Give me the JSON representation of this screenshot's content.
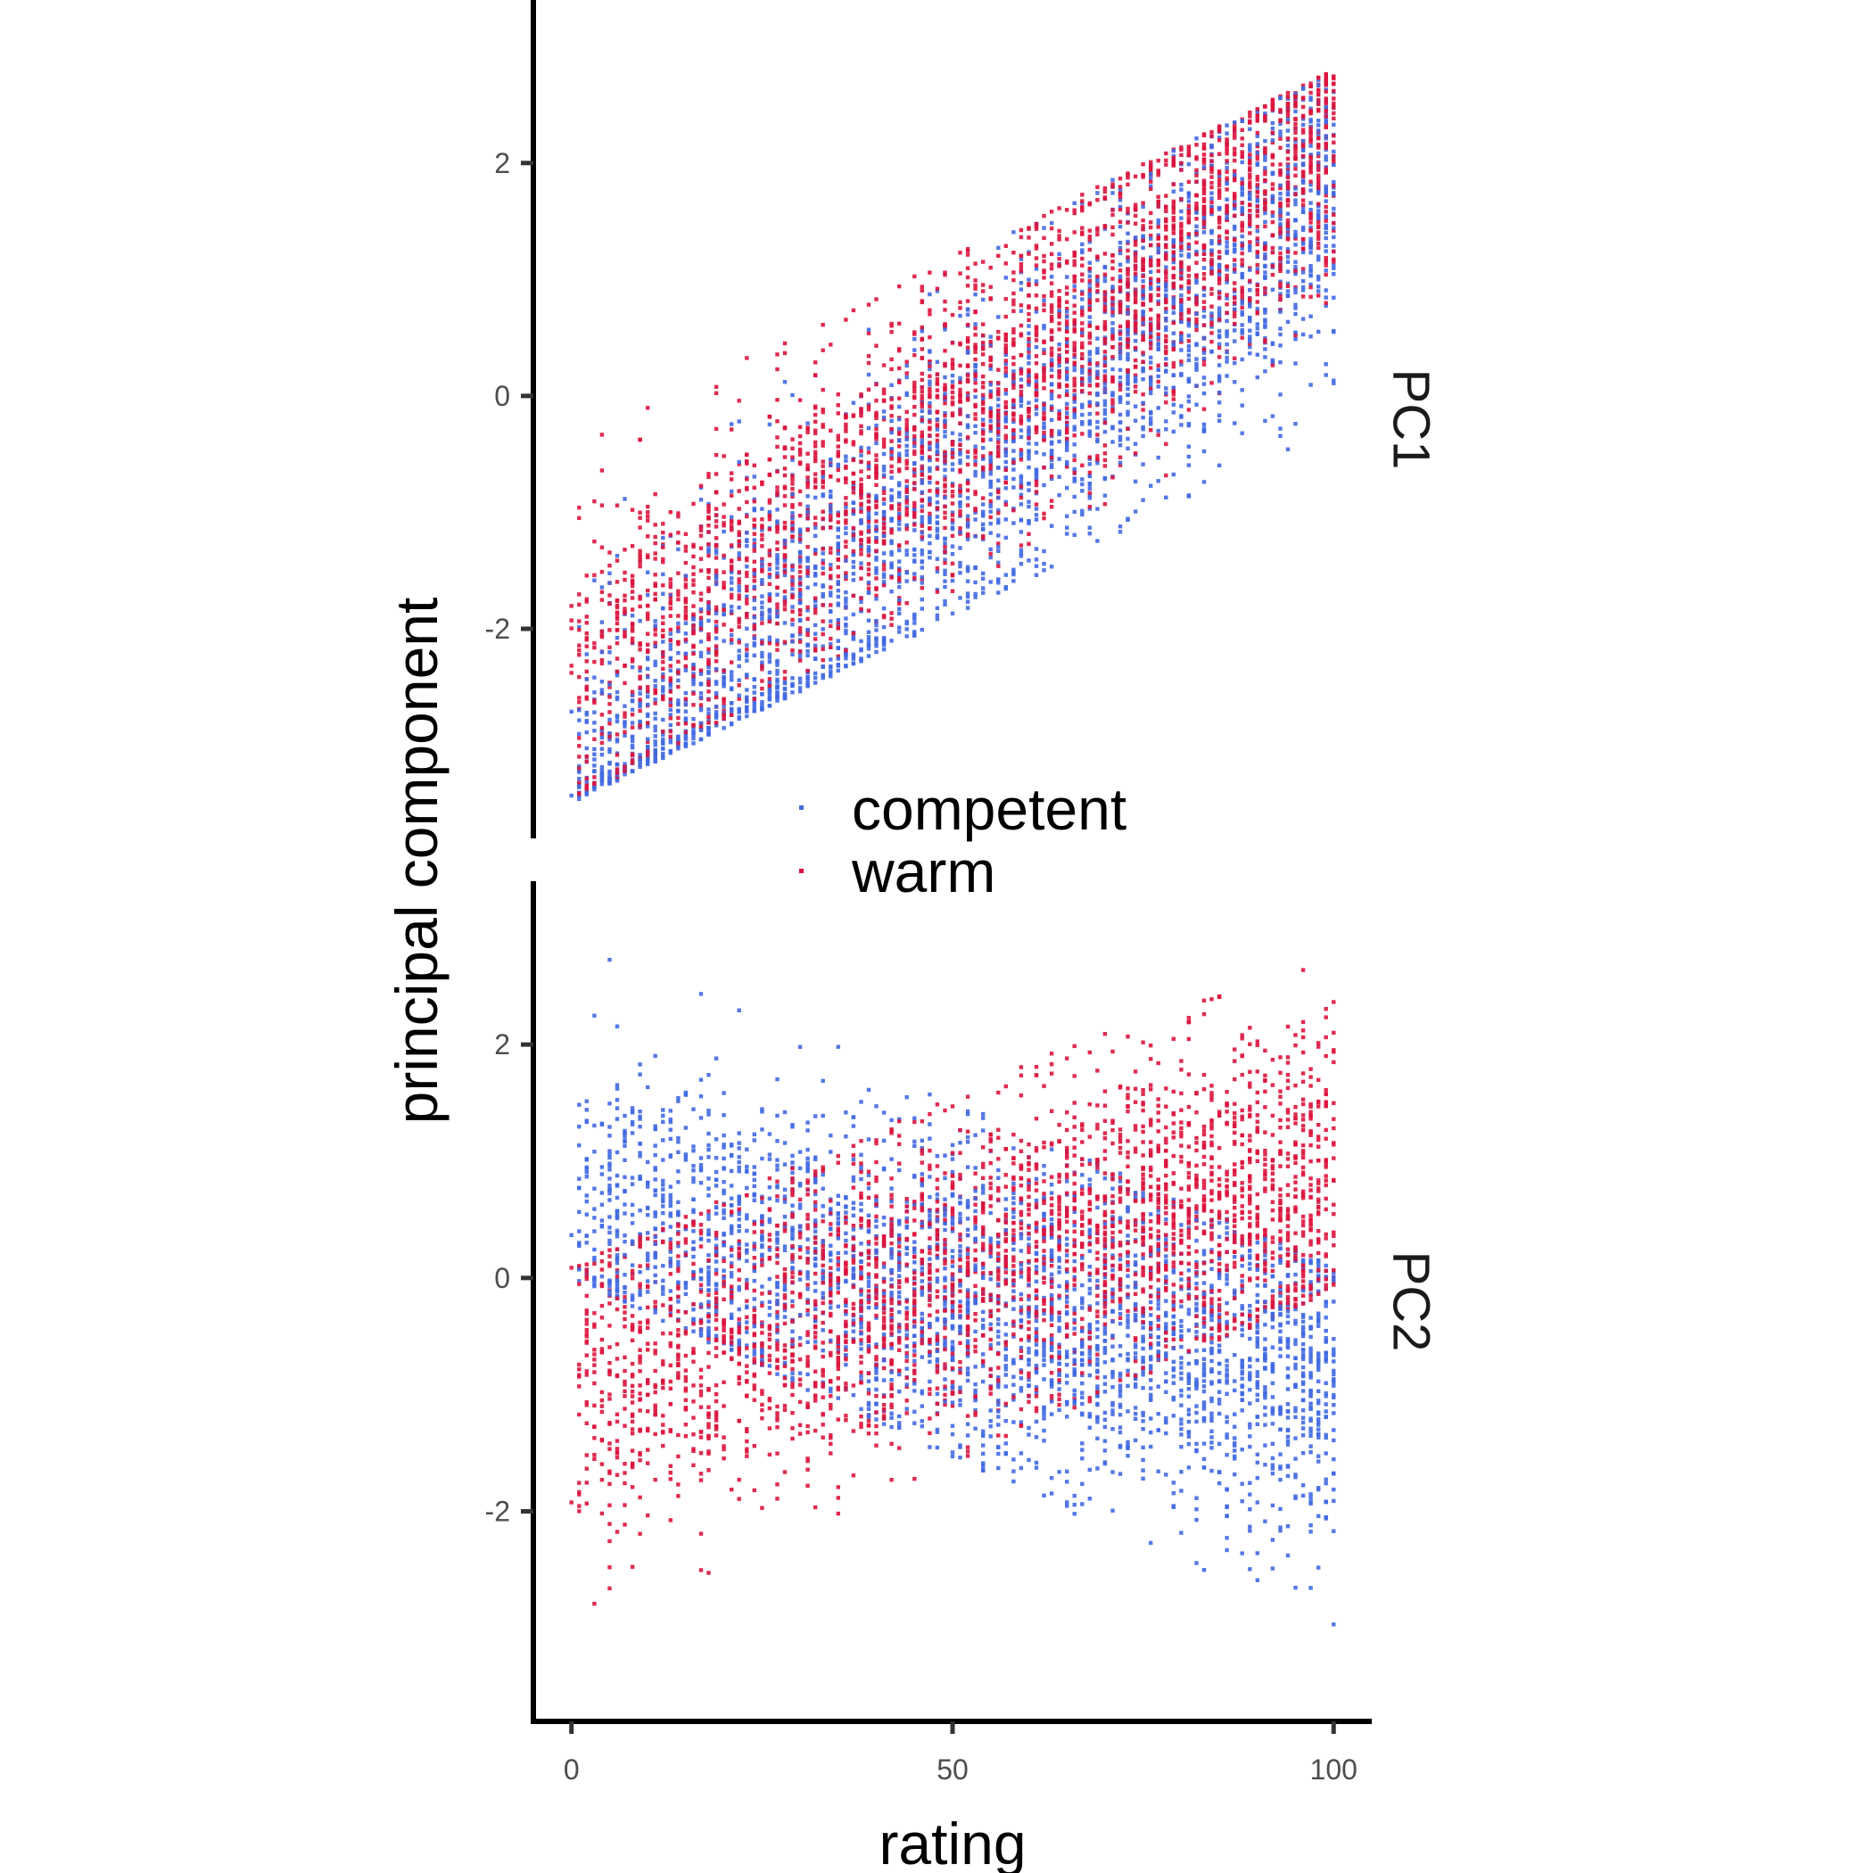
{
  "chart_data": {
    "type": "scatter",
    "xlabel": "rating",
    "ylabel": "principal component",
    "xlim": [
      -5,
      105
    ],
    "x_ticks": [
      "0",
      "50",
      "100"
    ],
    "x_tick_values": [
      0,
      50,
      100
    ],
    "legend": {
      "placement": "center",
      "entries": [
        "competent",
        "warm"
      ]
    },
    "colors": {
      "competent": "#4169e1",
      "warm": "#dc143c",
      "axis": "#000000"
    },
    "grid": false,
    "facets": [
      {
        "label": "PC1",
        "ylim": [
          -3.8,
          3.4
        ],
        "y_ticks": [
          "2",
          "0",
          "-2"
        ],
        "y_tick_values": [
          2,
          0,
          -2
        ],
        "series": [
          {
            "name": "competent",
            "x_range": [
              0,
              100
            ],
            "trend": [
              [
                0,
                -3.3
              ],
              [
                100,
                1.8
              ]
            ],
            "lower_edge": [
              [
                0,
                -3.5
              ],
              [
                100,
                -0.3
              ]
            ],
            "upper_edge": [
              [
                0,
                -0.4
              ],
              [
                100,
                2.8
              ]
            ]
          },
          {
            "name": "warm",
            "x_range": [
              0,
              100
            ],
            "trend": [
              [
                0,
                -2.6
              ],
              [
                100,
                2.2
              ]
            ],
            "lower_edge": [
              [
                0,
                -3.5
              ],
              [
                100,
                0.1
              ]
            ],
            "upper_edge": [
              [
                0,
                -0.4
              ],
              [
                100,
                2.8
              ]
            ]
          }
        ]
      },
      {
        "label": "PC2",
        "ylim": [
          -3.8,
          3.4
        ],
        "y_ticks": [
          "2",
          "0",
          "-2"
        ],
        "y_tick_values": [
          2,
          0,
          -2
        ],
        "series": [
          {
            "name": "competent",
            "x_range": [
              0,
              100
            ],
            "trend": [
              [
                0,
                0.6
              ],
              [
                100,
                -0.9
              ]
            ],
            "lower_edge": [
              [
                0,
                0.0
              ],
              [
                100,
                -3.1
              ]
            ],
            "upper_edge": [
              [
                0,
                3.0
              ],
              [
                100,
                0.1
              ]
            ]
          },
          {
            "name": "warm",
            "x_range": [
              0,
              100
            ],
            "trend": [
              [
                0,
                -0.9
              ],
              [
                100,
                0.9
              ]
            ],
            "lower_edge": [
              [
                0,
                -3.1
              ],
              [
                100,
                -0.1
              ]
            ],
            "upper_edge": [
              [
                0,
                0.1
              ],
              [
                100,
                3.0
              ]
            ]
          }
        ]
      }
    ]
  }
}
